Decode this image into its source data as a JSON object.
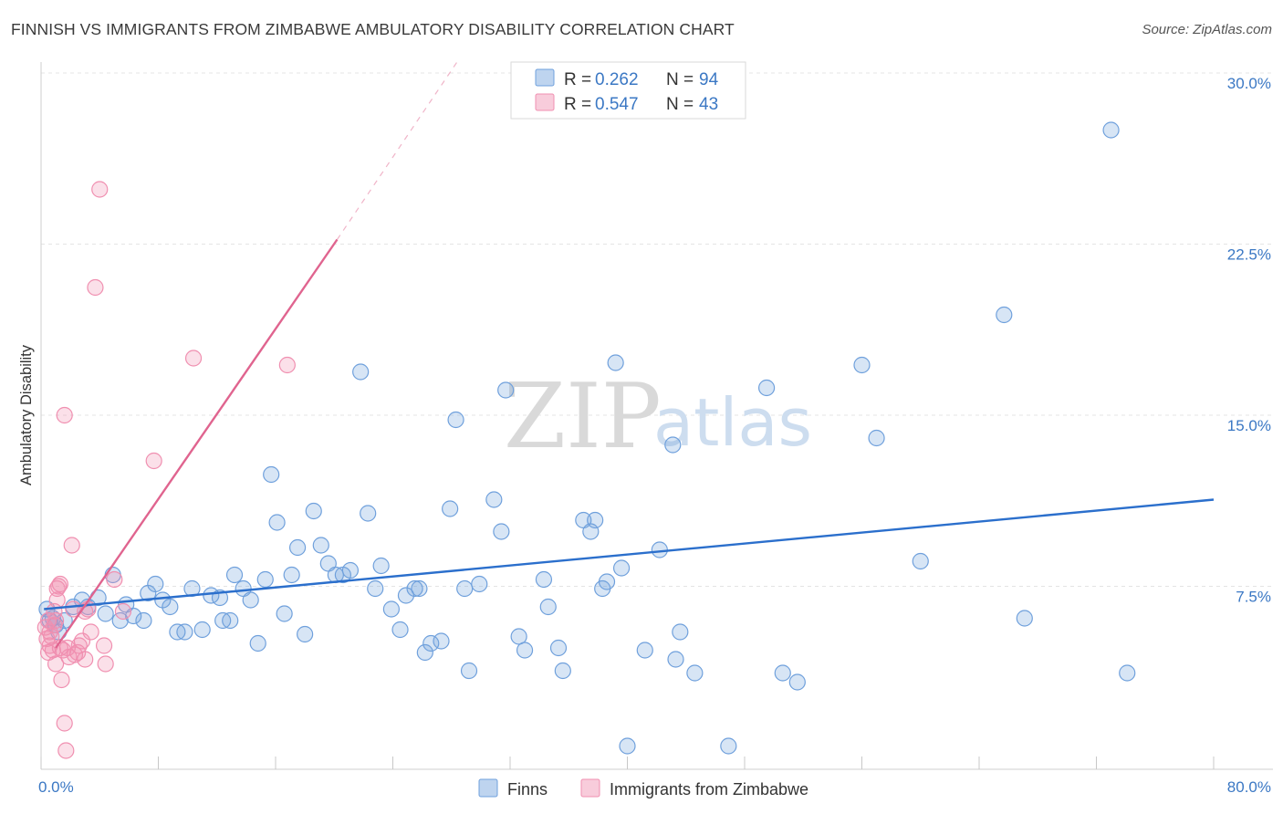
{
  "header": {
    "title": "FINNISH VS IMMIGRANTS FROM ZIMBABWE AMBULATORY DISABILITY CORRELATION CHART",
    "source": "Source: ZipAtlas.com"
  },
  "watermark": {
    "zip": "ZIP",
    "atlas": "atlas"
  },
  "colors": {
    "finns": "#6fa0dc",
    "finns_line": "#2b6fcc",
    "zimbabwe": "#f08fb0",
    "zimbabwe_line": "#e0648f",
    "tick_label": "#3b78c4",
    "grid": "#e4e4e4"
  },
  "legend": {
    "finns": {
      "r_label": "R =",
      "r_value": "0.262",
      "n_label": "N =",
      "n_value": "94"
    },
    "zimbabwe": {
      "r_label": "R =",
      "r_value": "0.547",
      "n_label": "N =",
      "n_value": "43"
    }
  },
  "chart_data": {
    "type": "scatter",
    "title": "FINNISH VS IMMIGRANTS FROM ZIMBABWE AMBULATORY DISABILITY CORRELATION CHART",
    "xlabel": "",
    "ylabel": "Ambulatory Disability",
    "xlim": [
      0,
      80
    ],
    "ylim": [
      0,
      30
    ],
    "x_tick_labels": [
      "0.0%",
      "80.0%"
    ],
    "y_ticks": [
      7.5,
      15.0,
      22.5,
      30.0
    ],
    "y_tick_labels": [
      "7.5%",
      "15.0%",
      "22.5%",
      "30.0%"
    ],
    "grid": true,
    "legend_position": "top-center",
    "series": [
      {
        "name": "Finns",
        "trend": {
          "x": [
            0.2,
            80
          ],
          "y": [
            6.5,
            11.3
          ]
        },
        "points": [
          [
            0.4,
            6.5
          ],
          [
            0.6,
            6.0
          ],
          [
            0.8,
            6.1
          ],
          [
            1.0,
            5.8
          ],
          [
            1.2,
            5.5
          ],
          [
            1.6,
            6.0
          ],
          [
            2.2,
            6.6
          ],
          [
            2.8,
            6.9
          ],
          [
            3.2,
            6.6
          ],
          [
            3.9,
            7.0
          ],
          [
            4.4,
            6.3
          ],
          [
            4.9,
            8.0
          ],
          [
            5.4,
            6.0
          ],
          [
            5.8,
            6.7
          ],
          [
            6.3,
            6.2
          ],
          [
            7.0,
            6.0
          ],
          [
            7.3,
            7.2
          ],
          [
            7.8,
            7.6
          ],
          [
            8.3,
            6.9
          ],
          [
            8.8,
            6.6
          ],
          [
            9.3,
            5.5
          ],
          [
            9.8,
            5.5
          ],
          [
            10.3,
            7.4
          ],
          [
            11.0,
            5.6
          ],
          [
            11.6,
            7.1
          ],
          [
            12.2,
            7.0
          ],
          [
            12.4,
            6.0
          ],
          [
            12.9,
            6.0
          ],
          [
            13.2,
            8.0
          ],
          [
            13.8,
            7.4
          ],
          [
            14.3,
            6.9
          ],
          [
            14.8,
            5.0
          ],
          [
            15.3,
            7.8
          ],
          [
            15.7,
            12.4
          ],
          [
            16.1,
            10.3
          ],
          [
            16.6,
            6.3
          ],
          [
            17.1,
            8.0
          ],
          [
            17.5,
            9.2
          ],
          [
            18.0,
            5.4
          ],
          [
            18.6,
            10.8
          ],
          [
            19.1,
            9.3
          ],
          [
            19.6,
            8.5
          ],
          [
            20.1,
            8.0
          ],
          [
            20.6,
            8.0
          ],
          [
            21.1,
            8.2
          ],
          [
            21.8,
            16.9
          ],
          [
            22.3,
            10.7
          ],
          [
            22.8,
            7.4
          ],
          [
            23.2,
            8.4
          ],
          [
            23.9,
            6.5
          ],
          [
            24.5,
            5.6
          ],
          [
            24.9,
            7.1
          ],
          [
            25.5,
            7.4
          ],
          [
            25.8,
            7.4
          ],
          [
            26.2,
            4.6
          ],
          [
            26.6,
            5.0
          ],
          [
            27.3,
            5.1
          ],
          [
            27.9,
            10.9
          ],
          [
            28.3,
            14.8
          ],
          [
            28.9,
            7.4
          ],
          [
            29.2,
            3.8
          ],
          [
            29.9,
            7.6
          ],
          [
            30.9,
            11.3
          ],
          [
            31.4,
            9.9
          ],
          [
            31.7,
            16.1
          ],
          [
            32.6,
            5.3
          ],
          [
            33.0,
            4.7
          ],
          [
            34.3,
            7.8
          ],
          [
            34.6,
            6.6
          ],
          [
            35.3,
            4.8
          ],
          [
            35.6,
            3.8
          ],
          [
            37.0,
            10.4
          ],
          [
            37.5,
            9.9
          ],
          [
            37.8,
            10.4
          ],
          [
            38.3,
            7.4
          ],
          [
            38.6,
            7.7
          ],
          [
            39.2,
            17.3
          ],
          [
            39.6,
            8.3
          ],
          [
            40.0,
            0.5
          ],
          [
            41.2,
            4.7
          ],
          [
            42.2,
            9.1
          ],
          [
            43.1,
            13.7
          ],
          [
            43.3,
            4.3
          ],
          [
            43.6,
            5.5
          ],
          [
            44.6,
            3.7
          ],
          [
            46.9,
            0.5
          ],
          [
            49.5,
            16.2
          ],
          [
            50.6,
            3.7
          ],
          [
            51.6,
            3.3
          ],
          [
            56.0,
            17.2
          ],
          [
            57.0,
            14.0
          ],
          [
            60.0,
            8.6
          ],
          [
            65.7,
            19.4
          ],
          [
            67.1,
            6.1
          ],
          [
            73.0,
            27.5
          ],
          [
            74.1,
            3.7
          ]
        ]
      },
      {
        "name": "Immigrants from Zimbabwe",
        "trend_solid": {
          "x": [
            1.0,
            20.2
          ],
          "y": [
            4.8,
            22.7
          ]
        },
        "trend_dashed": {
          "x": [
            20.2,
            28.4
          ],
          "y": [
            22.7,
            30.5
          ]
        },
        "points": [
          [
            0.3,
            5.7
          ],
          [
            0.4,
            5.2
          ],
          [
            0.5,
            4.6
          ],
          [
            0.5,
            6.0
          ],
          [
            0.6,
            5.5
          ],
          [
            0.6,
            4.9
          ],
          [
            0.7,
            5.3
          ],
          [
            0.8,
            4.7
          ],
          [
            0.9,
            6.4
          ],
          [
            0.9,
            5.8
          ],
          [
            1.0,
            4.1
          ],
          [
            1.0,
            6.0
          ],
          [
            1.1,
            6.9
          ],
          [
            1.1,
            7.4
          ],
          [
            1.2,
            7.5
          ],
          [
            1.3,
            7.6
          ],
          [
            1.3,
            4.8
          ],
          [
            1.4,
            3.4
          ],
          [
            1.5,
            4.7
          ],
          [
            1.6,
            1.5
          ],
          [
            1.6,
            15.0
          ],
          [
            1.7,
            0.3
          ],
          [
            1.8,
            4.8
          ],
          [
            1.9,
            4.4
          ],
          [
            2.1,
            9.3
          ],
          [
            2.2,
            6.5
          ],
          [
            2.3,
            4.5
          ],
          [
            2.5,
            4.6
          ],
          [
            2.6,
            4.9
          ],
          [
            2.8,
            5.1
          ],
          [
            3.0,
            6.4
          ],
          [
            3.0,
            4.3
          ],
          [
            3.2,
            6.5
          ],
          [
            3.4,
            5.5
          ],
          [
            3.7,
            20.6
          ],
          [
            4.0,
            24.9
          ],
          [
            4.3,
            4.9
          ],
          [
            4.4,
            4.1
          ],
          [
            5.0,
            7.8
          ],
          [
            5.6,
            6.4
          ],
          [
            7.7,
            13.0
          ],
          [
            10.4,
            17.5
          ],
          [
            16.8,
            17.2
          ]
        ]
      }
    ]
  }
}
